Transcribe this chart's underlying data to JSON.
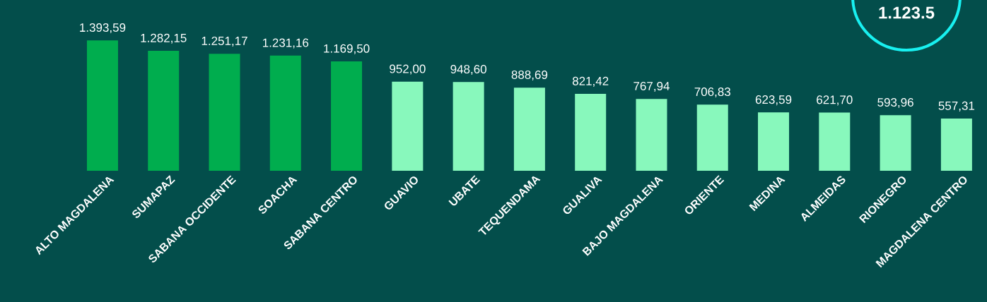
{
  "chart_data": {
    "type": "bar",
    "categories": [
      "ALTO MAGDALENA",
      "SUMAPAZ",
      "SABANA OCCIDENTE",
      "SOACHA",
      "SABANA CENTRO",
      "GUAVIO",
      "UBATE",
      "TEQUENDAMA",
      "GUALIVA",
      "BAJO MAGDALENA",
      "ORIENTE",
      "MEDINA",
      "ALMEIDAS",
      "RIONEGRO",
      "MAGDALENA CENTRO"
    ],
    "values": [
      1393.59,
      1282.15,
      1251.17,
      1231.16,
      1169.5,
      952.0,
      948.6,
      888.69,
      821.42,
      767.94,
      706.83,
      623.59,
      621.7,
      593.96,
      557.31
    ],
    "value_labels": [
      "1.393,59",
      "1.282,15",
      "1.251,17",
      "1.231,16",
      "1.169,50",
      "952,00",
      "948,60",
      "888,69",
      "821,42",
      "767,94",
      "706,83",
      "623,59",
      "621,70",
      "593,96",
      "557,31"
    ],
    "colors": [
      "#00ad4e",
      "#00ad4e",
      "#00ad4e",
      "#00ad4e",
      "#00ad4e",
      "#88f8bc",
      "#88f8bc",
      "#88f8bc",
      "#88f8bc",
      "#88f8bc",
      "#88f8bc",
      "#88f8bc",
      "#88f8bc",
      "#88f8bc",
      "#88f8bc"
    ],
    "annotations": [
      "1.123.5"
    ]
  }
}
